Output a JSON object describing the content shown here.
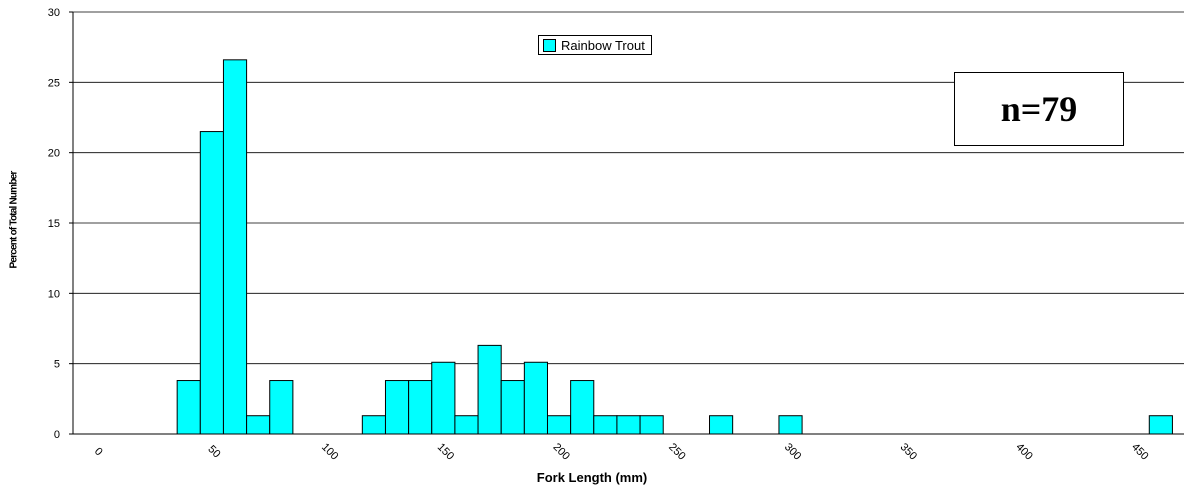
{
  "chart_data": {
    "type": "bar",
    "title": "",
    "xlabel": "Fork Length (mm)",
    "ylabel": "Percent of Total Number",
    "annotation": "n=79",
    "xlim": [
      -10,
      470
    ],
    "ylim": [
      0,
      30
    ],
    "y_ticks": [
      "0",
      "5",
      "10",
      "15",
      "20",
      "25",
      "30"
    ],
    "x_ticks": [
      "0",
      "50",
      "100",
      "150",
      "200",
      "250",
      "300",
      "350",
      "400",
      "450"
    ],
    "grid": "horizontal",
    "legend_position": "top-center",
    "bin_width": 10,
    "series": [
      {
        "name": "Rainbow Trout",
        "color": "#00ffff",
        "points": [
          {
            "x": 40,
            "y": 3.8
          },
          {
            "x": 50,
            "y": 21.5
          },
          {
            "x": 60,
            "y": 26.6
          },
          {
            "x": 70,
            "y": 1.3
          },
          {
            "x": 80,
            "y": 3.8
          },
          {
            "x": 120,
            "y": 1.3
          },
          {
            "x": 130,
            "y": 3.8
          },
          {
            "x": 140,
            "y": 3.8
          },
          {
            "x": 150,
            "y": 5.1
          },
          {
            "x": 160,
            "y": 1.3
          },
          {
            "x": 170,
            "y": 6.3
          },
          {
            "x": 180,
            "y": 3.8
          },
          {
            "x": 190,
            "y": 5.1
          },
          {
            "x": 200,
            "y": 1.3
          },
          {
            "x": 210,
            "y": 3.8
          },
          {
            "x": 220,
            "y": 1.3
          },
          {
            "x": 230,
            "y": 1.3
          },
          {
            "x": 240,
            "y": 1.3
          },
          {
            "x": 270,
            "y": 1.3
          },
          {
            "x": 300,
            "y": 1.3
          },
          {
            "x": 460,
            "y": 1.3
          }
        ]
      }
    ]
  }
}
